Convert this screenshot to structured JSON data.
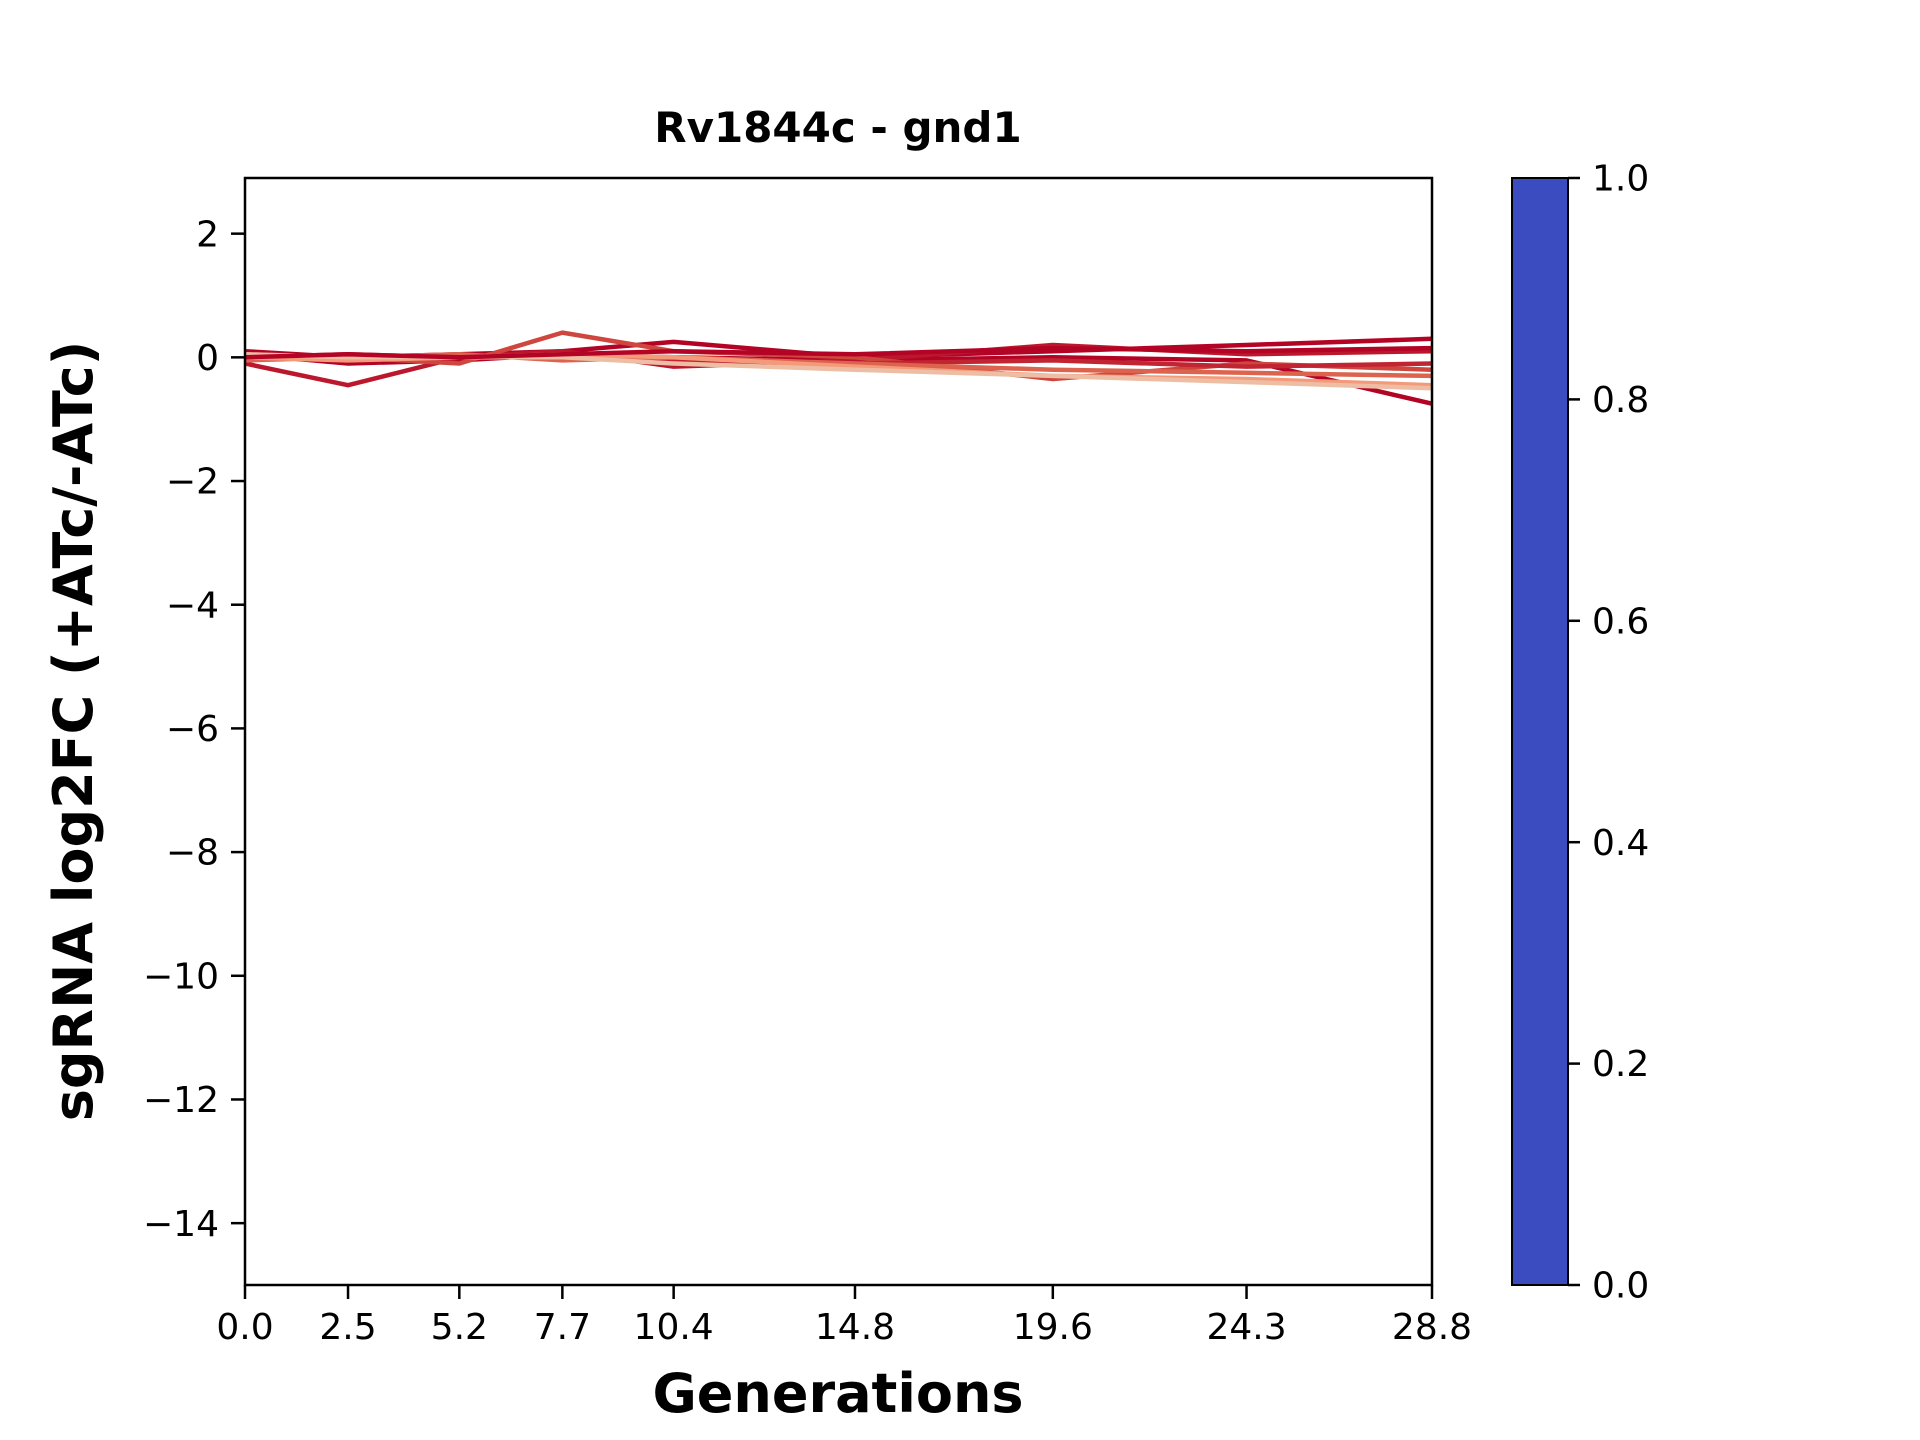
{
  "chart_data": {
    "type": "line",
    "title": "Rv1844c - gnd1",
    "xlabel": "Generations",
    "ylabel": "sgRNA log2FC (+ATc/-ATc)",
    "x": [
      0.0,
      2.5,
      5.2,
      7.7,
      10.4,
      14.8,
      19.6,
      24.3,
      28.8
    ],
    "x_tick_labels": [
      "0.0",
      "2.5",
      "5.2",
      "7.7",
      "10.4",
      "14.8",
      "19.6",
      "24.3",
      "28.8"
    ],
    "y_ticks": [
      2,
      0,
      -2,
      -4,
      -6,
      -8,
      -10,
      -12,
      -14
    ],
    "y_tick_labels": [
      "2",
      "0",
      "−2",
      "−4",
      "−6",
      "−8",
      "−10",
      "−12",
      "−14"
    ],
    "xlim": [
      0.0,
      28.8
    ],
    "ylim": [
      -15.0,
      2.9
    ],
    "grid": false,
    "legend": "none",
    "series": [
      {
        "colormap_value": 1.0,
        "values": [
          0.05,
          -0.1,
          -0.05,
          0.05,
          0.0,
          -0.05,
          0.0,
          -0.05,
          -0.75
        ]
      },
      {
        "colormap_value": 1.0,
        "values": [
          0.1,
          0.0,
          0.05,
          0.1,
          0.25,
          0.0,
          0.1,
          0.2,
          0.3
        ]
      },
      {
        "colormap_value": 0.97,
        "values": [
          -0.1,
          -0.45,
          0.0,
          0.1,
          -0.15,
          -0.05,
          0.2,
          0.05,
          0.1
        ]
      },
      {
        "colormap_value": 0.9,
        "values": [
          0.05,
          0.0,
          -0.1,
          0.4,
          0.1,
          0.0,
          -0.35,
          -0.1,
          -0.2
        ]
      },
      {
        "colormap_value": 0.95,
        "values": [
          0.0,
          0.05,
          0.0,
          0.0,
          -0.05,
          -0.1,
          -0.05,
          -0.15,
          -0.1
        ]
      },
      {
        "colormap_value": 0.85,
        "values": [
          -0.05,
          0.0,
          0.05,
          -0.05,
          0.0,
          -0.1,
          -0.2,
          -0.25,
          -0.3
        ]
      },
      {
        "colormap_value": 0.75,
        "values": [
          0.0,
          -0.05,
          0.0,
          0.05,
          0.0,
          -0.15,
          -0.3,
          -0.35,
          -0.45
        ]
      },
      {
        "colormap_value": 0.62,
        "values": [
          0.05,
          0.0,
          0.0,
          0.0,
          -0.1,
          -0.2,
          -0.3,
          -0.4,
          -0.5
        ]
      },
      {
        "colormap_value": 1.0,
        "values": [
          0.0,
          0.05,
          0.0,
          0.05,
          0.1,
          0.05,
          0.15,
          0.1,
          0.15
        ]
      }
    ],
    "colorbar": {
      "colormap": "coolwarm",
      "min": 0.0,
      "max": 1.0,
      "tick_values": [
        1.0,
        0.8,
        0.6,
        0.4,
        0.2,
        0.0
      ],
      "tick_labels": [
        "1.0",
        "0.8",
        "0.6",
        "0.4",
        "0.2",
        "0.0"
      ]
    }
  }
}
